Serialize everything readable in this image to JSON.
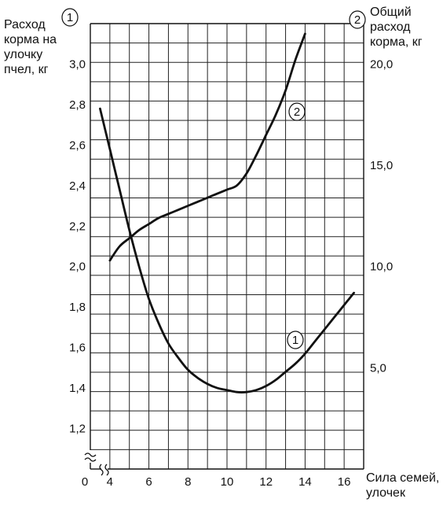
{
  "chart_data": {
    "type": "line",
    "left_axis": {
      "marker": "1",
      "label": "Расход\nкорма на\nулочку\nпчел, кг",
      "ticks": [
        "1,2",
        "1,4",
        "1,6",
        "1,8",
        "2,0",
        "2,2",
        "2,4",
        "2,6",
        "2,8",
        "3,0"
      ],
      "tick_values": [
        1.2,
        1.4,
        1.6,
        1.8,
        2.0,
        2.2,
        2.4,
        2.6,
        2.8,
        3.0
      ],
      "range": [
        1.0,
        3.2
      ]
    },
    "right_axis": {
      "marker": "2",
      "label": "Общий\nрасход\nкорма, кг",
      "ticks": [
        "5,0",
        "10,0",
        "15,0",
        "20,0"
      ],
      "tick_values": [
        5.0,
        10.0,
        15.0,
        20.0
      ],
      "range": [
        0.0,
        22.0
      ]
    },
    "x_axis": {
      "label": "Сила семей,\nулочек",
      "origin_label": "0",
      "ticks": [
        "4",
        "6",
        "8",
        "10",
        "12",
        "14",
        "16"
      ],
      "tick_values": [
        4,
        6,
        8,
        10,
        12,
        14,
        16
      ],
      "range": [
        3.0,
        17.0
      ],
      "axis_break": true
    },
    "grid": true,
    "series": [
      {
        "name": "1",
        "axis": "left",
        "x": [
          3.5,
          4.0,
          4.5,
          5.0,
          5.5,
          6.0,
          6.5,
          7.0,
          7.5,
          8.0,
          8.5,
          9.0,
          9.5,
          10.0,
          10.5,
          11.0,
          11.5,
          12.0,
          12.5,
          13.0,
          13.5,
          14.0,
          14.5,
          15.0,
          15.5,
          16.0,
          16.5
        ],
        "y": [
          2.78,
          2.58,
          2.38,
          2.18,
          2.0,
          1.84,
          1.72,
          1.62,
          1.55,
          1.49,
          1.45,
          1.42,
          1.4,
          1.39,
          1.38,
          1.38,
          1.39,
          1.41,
          1.44,
          1.48,
          1.52,
          1.57,
          1.63,
          1.69,
          1.75,
          1.81,
          1.87
        ]
      },
      {
        "name": "2",
        "axis": "right",
        "x": [
          4.0,
          4.5,
          5.0,
          5.5,
          6.0,
          6.5,
          7.0,
          7.5,
          8.0,
          8.5,
          9.0,
          9.5,
          10.0,
          10.5,
          11.0,
          11.5,
          12.0,
          12.5,
          13.0,
          13.5,
          14.0
        ],
        "y": [
          10.3,
          11.0,
          11.4,
          11.8,
          12.1,
          12.4,
          12.6,
          12.8,
          13.0,
          13.2,
          13.4,
          13.6,
          13.8,
          14.0,
          14.6,
          15.5,
          16.5,
          17.5,
          18.7,
          20.2,
          21.5
        ]
      }
    ]
  }
}
